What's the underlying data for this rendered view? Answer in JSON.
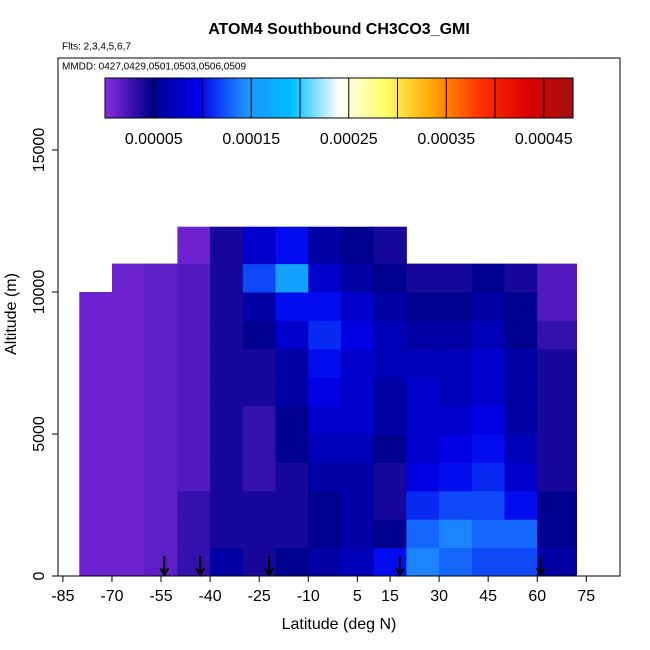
{
  "chart_data": {
    "type": "heatmap",
    "title": "ATOM4 Southbound CH3CO3_GMI",
    "subtitle": "Flts: 2,3,4,5,6,7",
    "annotation": "MMDD: 0427,0429,0501,0503,0506,0509",
    "x_label": "Latitude (deg N)",
    "y_label": "Altitude (m)",
    "xlim": [
      -86.5,
      85.3
    ],
    "xticks": [
      -85,
      -70,
      -55,
      -40,
      -25,
      -10,
      5,
      15,
      30,
      45,
      60,
      75
    ],
    "ylim": [
      0,
      18240
    ],
    "yticks": [
      0,
      5000,
      10000,
      15000
    ],
    "x_edges": [
      -80,
      -70,
      -60,
      -50,
      -40,
      -30,
      -20,
      -10,
      0,
      10,
      20,
      30,
      40,
      50,
      60,
      72
    ],
    "y_edges": [
      0,
      1000,
      2000,
      3000,
      4000,
      5000,
      6000,
      7000,
      8000,
      9000,
      10000,
      11000,
      12300
    ],
    "z": [
      [
        1e-05,
        1e-05,
        1.5e-05,
        3e-05,
        6e-05,
        4e-05,
        5e-05,
        6e-05,
        7e-05,
        0.0001,
        0.00014,
        0.00013,
        0.00012,
        0.00012,
        6e-05
      ],
      [
        1e-05,
        1e-05,
        1.5e-05,
        3e-05,
        4e-05,
        4e-05,
        4e-05,
        5e-05,
        6e-05,
        5e-05,
        0.00013,
        0.00014,
        0.00013,
        0.00013,
        5e-05
      ],
      [
        1e-05,
        1e-05,
        1.5e-05,
        3e-05,
        4e-05,
        4e-05,
        4e-05,
        5e-05,
        6e-05,
        4e-05,
        0.00011,
        0.00012,
        0.00012,
        0.0001,
        5e-05
      ],
      [
        1e-05,
        1e-05,
        1.5e-05,
        2e-05,
        4e-05,
        3e-05,
        4e-05,
        6e-05,
        6e-05,
        4e-05,
        9e-05,
        0.0001,
        0.00011,
        8e-05,
        4e-05
      ],
      [
        1e-05,
        1e-05,
        1.5e-05,
        2e-05,
        4e-05,
        3e-05,
        5e-05,
        7e-05,
        7e-05,
        5e-05,
        8e-05,
        9e-05,
        0.0001,
        7e-05,
        4e-05
      ],
      [
        1e-05,
        1e-05,
        1.5e-05,
        2e-05,
        4e-05,
        3e-05,
        5e-05,
        8e-05,
        8e-05,
        6e-05,
        8e-05,
        8e-05,
        9e-05,
        6e-05,
        4e-05
      ],
      [
        1e-05,
        1e-05,
        1.5e-05,
        2e-05,
        4e-05,
        4e-05,
        6e-05,
        9e-05,
        8e-05,
        6e-05,
        8e-05,
        7e-05,
        8e-05,
        6e-05,
        4e-05
      ],
      [
        1e-05,
        1e-05,
        1.5e-05,
        2e-05,
        4e-05,
        4e-05,
        6e-05,
        0.0001,
        8e-05,
        7e-05,
        7e-05,
        7e-05,
        8e-05,
        6e-05,
        4e-05
      ],
      [
        1e-05,
        1e-05,
        1.5e-05,
        2e-05,
        4e-05,
        5e-05,
        8e-05,
        0.00011,
        9e-05,
        7e-05,
        6e-05,
        6e-05,
        7e-05,
        5e-05,
        3e-05
      ],
      [
        1e-05,
        1e-05,
        1.5e-05,
        2e-05,
        4e-05,
        6e-05,
        0.0001,
        0.0001,
        8e-05,
        6e-05,
        5e-05,
        5e-05,
        6e-05,
        5e-05,
        2e-05
      ],
      [
        null,
        1e-05,
        1.5e-05,
        2e-05,
        4e-05,
        0.00012,
        0.00016,
        8e-05,
        6e-05,
        5e-05,
        4e-05,
        4e-05,
        5e-05,
        4e-05,
        2e-05
      ],
      [
        null,
        null,
        null,
        1e-05,
        4e-05,
        8e-05,
        0.0001,
        6e-05,
        5e-05,
        4e-05,
        null,
        null,
        null,
        null,
        null
      ]
    ],
    "arrows_x": [
      -54,
      -43,
      -22,
      18,
      61
    ],
    "colorbar": {
      "lim": [
        0,
        0.00048
      ],
      "ticks": [
        5e-05,
        0.00015,
        0.00025,
        0.00035,
        0.00045
      ],
      "colors": [
        "#8a2be2",
        "#00008b",
        "#0000ee",
        "#1e90ff",
        "#00bfff",
        "#ffffff",
        "#ffff66",
        "#ffa500",
        "#ff3300",
        "#e00000",
        "#a01010"
      ]
    }
  }
}
